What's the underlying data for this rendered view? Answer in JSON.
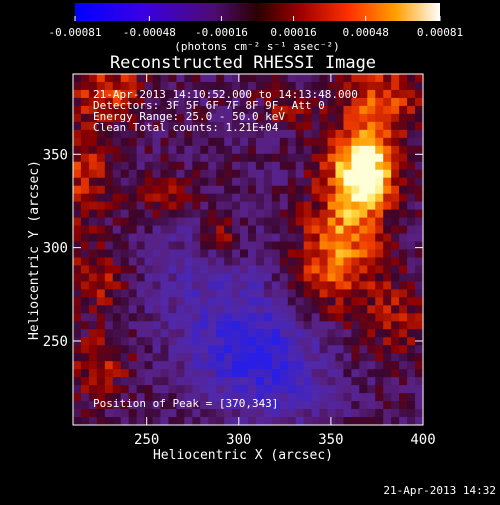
{
  "chart_data": {
    "type": "heatmap",
    "title": "Reconstructed RHESSI Image",
    "xlabel": "Heliocentric X (arcsec)",
    "ylabel": "Heliocentric Y (arcsec)",
    "xlim": [
      210,
      400
    ],
    "ylim": [
      205,
      393
    ],
    "x_ticks": [
      250,
      300,
      350,
      400
    ],
    "x_tick_labels": [
      "250",
      "300",
      "350",
      "400"
    ],
    "y_ticks": [
      250,
      300,
      350
    ],
    "y_tick_labels": [
      "250",
      "300",
      "350"
    ],
    "annotations": [
      "21-Apr-2013 14:10:52.000 to 14:13:48.000",
      "Detectors: 3F 5F 6F 7F 8F 9F, Att 0",
      "Energy Range: 25.0 - 50.0 keV",
      "Clean    Total counts: 1.21E+04"
    ],
    "peak_label": "Position of Peak = [370,343]",
    "peak": [
      370,
      343
    ],
    "colorbar": {
      "range": [
        -0.00081,
        0.00081
      ],
      "tick_values": [
        -0.00081,
        -0.00048,
        -0.00016,
        0.00016,
        0.00048,
        0.00081
      ],
      "tick_labels": [
        "-0.00081",
        "-0.00048",
        "-0.00016",
        "0.00016",
        "0.00048",
        "0.00081"
      ],
      "unit_label": "(photons cm⁻² s⁻¹ asec⁻²)"
    },
    "sources": [
      {
        "x": 370,
        "y": 343,
        "amp": 1.0,
        "sx": 11,
        "sy": 14
      },
      {
        "x": 360,
        "y": 320,
        "amp": 0.65,
        "sx": 13,
        "sy": 28
      },
      {
        "x": 378,
        "y": 380,
        "amp": 0.55,
        "sx": 17,
        "sy": 13
      },
      {
        "x": 345,
        "y": 290,
        "amp": 0.45,
        "sx": 16,
        "sy": 18
      },
      {
        "x": 385,
        "y": 262,
        "amp": 0.35,
        "sx": 13,
        "sy": 16
      },
      {
        "x": 230,
        "y": 385,
        "amp": 0.5,
        "sx": 14,
        "sy": 11
      },
      {
        "x": 215,
        "y": 340,
        "amp": 0.45,
        "sx": 11,
        "sy": 22
      },
      {
        "x": 260,
        "y": 328,
        "amp": 0.35,
        "sx": 11,
        "sy": 9
      },
      {
        "x": 292,
        "y": 305,
        "amp": 0.48,
        "sx": 9,
        "sy": 9
      },
      {
        "x": 223,
        "y": 283,
        "amp": 0.42,
        "sx": 13,
        "sy": 13
      },
      {
        "x": 225,
        "y": 237,
        "amp": 0.38,
        "sx": 13,
        "sy": 13
      },
      {
        "x": 325,
        "y": 375,
        "amp": 0.3,
        "sx": 9,
        "sy": 7
      },
      {
        "x": 310,
        "y": 242,
        "amp": -0.75,
        "sx": 22,
        "sy": 18
      },
      {
        "x": 285,
        "y": 280,
        "amp": -0.35,
        "sx": 32,
        "sy": 27
      },
      {
        "x": 330,
        "y": 215,
        "amp": -0.2,
        "sx": 22,
        "sy": 14
      }
    ]
  },
  "footer": {
    "timestamp": "21-Apr-2013 14:32"
  },
  "colors": {
    "background": "#000000",
    "text": "#ffffff"
  }
}
